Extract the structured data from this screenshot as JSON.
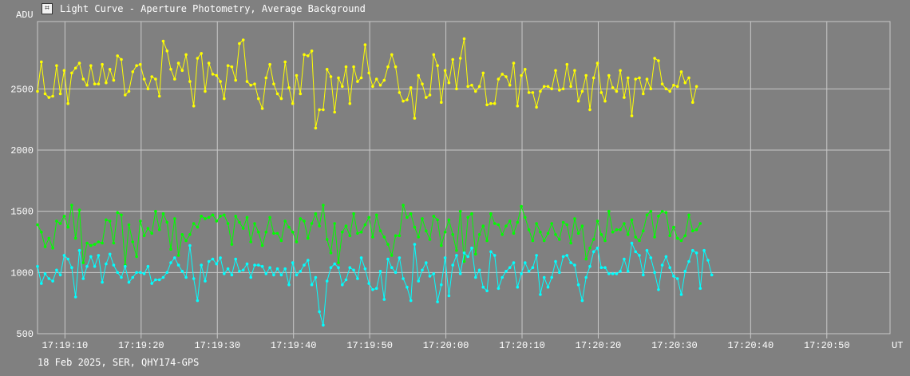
{
  "window": {
    "title": "Light Curve - Aperture Photometry, Average Background",
    "icon": "light-curve-app-icon"
  },
  "footer": {
    "info": "18 Feb 2025, SER, QHY174-GPS"
  },
  "colors": {
    "background": "#808080",
    "grid": "#c8c8c8",
    "text": "#ffffff",
    "yellow_series": "#ffff00",
    "green_series": "#00ff00",
    "cyan_series": "#00ffff"
  },
  "chart_data": {
    "type": "line",
    "title": "Light Curve - Aperture Photometry, Average Background",
    "ylabel": "ADU",
    "xlabel": "UT",
    "ylim": [
      500,
      3050
    ],
    "yticks": [
      500,
      1000,
      1500,
      2000,
      2500
    ],
    "xlim": [
      "17:19:06.4",
      "17:20:58.3"
    ],
    "xticks": [
      "17:19:10",
      "17:19:20",
      "17:19:30",
      "17:19:40",
      "17:19:50",
      "17:20:00",
      "17:20:10",
      "17:20:20",
      "17:20:30",
      "17:20:40",
      "17:20:50"
    ],
    "grid": true,
    "x_start": "17:19:06.4",
    "x_step_seconds": 0.5,
    "series": [
      {
        "color": "#ffff00",
        "values": [
          2480,
          2720,
          2460,
          2430,
          2440,
          2690,
          2460,
          2650,
          2380,
          2630,
          2670,
          2710,
          2580,
          2530,
          2690,
          2540,
          2540,
          2700,
          2550,
          2660,
          2570,
          2770,
          2740,
          2450,
          2480,
          2640,
          2690,
          2700,
          2580,
          2500,
          2600,
          2580,
          2440,
          2890,
          2810,
          2660,
          2580,
          2710,
          2650,
          2780,
          2560,
          2360,
          2750,
          2790,
          2480,
          2710,
          2620,
          2610,
          2560,
          2420,
          2690,
          2680,
          2570,
          2870,
          2900,
          2560,
          2530,
          2540,
          2420,
          2340,
          2590,
          2700,
          2540,
          2460,
          2420,
          2720,
          2510,
          2380,
          2610,
          2460,
          2780,
          2770,
          2810,
          2180,
          2330,
          2330,
          2660,
          2600,
          2310,
          2590,
          2520,
          2680,
          2380,
          2680,
          2560,
          2590,
          2860,
          2630,
          2520,
          2580,
          2530,
          2570,
          2680,
          2780,
          2680,
          2470,
          2400,
          2410,
          2510,
          2260,
          2610,
          2540,
          2430,
          2450,
          2780,
          2690,
          2390,
          2650,
          2550,
          2740,
          2500,
          2750,
          2910,
          2520,
          2530,
          2480,
          2520,
          2630,
          2370,
          2380,
          2380,
          2580,
          2620,
          2600,
          2530,
          2710,
          2360,
          2610,
          2660,
          2470,
          2470,
          2350,
          2480,
          2520,
          2520,
          2500,
          2650,
          2490,
          2500,
          2700,
          2520,
          2650,
          2400,
          2480,
          2610,
          2330,
          2590,
          2710,
          2470,
          2400,
          2610,
          2510,
          2480,
          2650,
          2430,
          2590,
          2280,
          2580,
          2590,
          2460,
          2580,
          2500,
          2750,
          2730,
          2540,
          2500,
          2480,
          2530,
          2520,
          2640,
          2550,
          2590,
          2390,
          2520
        ]
      },
      {
        "color": "#00ff00",
        "values": [
          1390,
          1330,
          1210,
          1280,
          1200,
          1420,
          1400,
          1460,
          1370,
          1550,
          1280,
          1510,
          1080,
          1240,
          1220,
          1230,
          1250,
          1240,
          1430,
          1420,
          1240,
          1490,
          1470,
          1060,
          1390,
          1250,
          1130,
          1420,
          1300,
          1360,
          1320,
          1500,
          1350,
          1480,
          1410,
          1190,
          1440,
          1140,
          1310,
          1260,
          1310,
          1400,
          1370,
          1460,
          1440,
          1450,
          1470,
          1420,
          1460,
          1470,
          1400,
          1230,
          1460,
          1410,
          1360,
          1450,
          1250,
          1400,
          1330,
          1220,
          1330,
          1450,
          1320,
          1320,
          1260,
          1420,
          1370,
          1330,
          1250,
          1440,
          1420,
          1280,
          1400,
          1480,
          1380,
          1550,
          1270,
          1160,
          1400,
          1080,
          1330,
          1380,
          1300,
          1480,
          1320,
          1330,
          1390,
          1450,
          1290,
          1470,
          1340,
          1290,
          1230,
          1140,
          1300,
          1300,
          1550,
          1450,
          1480,
          1370,
          1290,
          1440,
          1340,
          1270,
          1460,
          1430,
          1220,
          1330,
          1430,
          1310,
          1180,
          1500,
          1090,
          1450,
          1480,
          1150,
          1310,
          1380,
          1260,
          1480,
          1400,
          1390,
          1310,
          1380,
          1420,
          1320,
          1410,
          1540,
          1450,
          1350,
          1260,
          1400,
          1330,
          1260,
          1320,
          1400,
          1310,
          1270,
          1410,
          1390,
          1240,
          1440,
          1320,
          1380,
          1110,
          1200,
          1270,
          1420,
          1310,
          1260,
          1500,
          1330,
          1350,
          1350,
          1400,
          1310,
          1430,
          1290,
          1260,
          1340,
          1470,
          1500,
          1290,
          1460,
          1500,
          1490,
          1300,
          1370,
          1280,
          1260,
          1300,
          1470,
          1340,
          1350,
          1400
        ]
      },
      {
        "color": "#00ffff",
        "values": [
          1050,
          910,
          990,
          950,
          930,
          1020,
          980,
          1140,
          1110,
          1040,
          800,
          1180,
          950,
          1050,
          1130,
          1050,
          1140,
          920,
          1070,
          1150,
          1060,
          1000,
          960,
          1050,
          920,
          960,
          1000,
          1000,
          990,
          1050,
          910,
          940,
          940,
          960,
          1000,
          1080,
          1120,
          1060,
          1010,
          960,
          1220,
          950,
          770,
          1060,
          930,
          1090,
          1110,
          1070,
          1120,
          990,
          1030,
          980,
          1110,
          1010,
          1020,
          1070,
          960,
          1060,
          1060,
          1050,
          990,
          1040,
          980,
          1030,
          980,
          1030,
          900,
          1080,
          980,
          1010,
          1060,
          1100,
          900,
          960,
          680,
          570,
          930,
          1040,
          1070,
          1040,
          900,
          940,
          1040,
          1020,
          950,
          1120,
          1030,
          910,
          860,
          870,
          1010,
          780,
          1110,
          1040,
          1000,
          1120,
          950,
          880,
          770,
          1230,
          930,
          1020,
          1080,
          970,
          990,
          760,
          900,
          1120,
          810,
          1060,
          1140,
          990,
          1160,
          1130,
          1200,
          960,
          1020,
          880,
          850,
          1170,
          1140,
          870,
          960,
          1010,
          1040,
          1080,
          880,
          990,
          1080,
          1010,
          1040,
          1140,
          820,
          960,
          880,
          960,
          1090,
          1000,
          1130,
          1140,
          1080,
          1060,
          900,
          770,
          960,
          1050,
          1170,
          1200,
          1040,
          1040,
          990,
          990,
          990,
          1010,
          1110,
          1010,
          1240,
          1170,
          1140,
          980,
          1180,
          1120,
          1000,
          860,
          1060,
          1130,
          1040,
          970,
          950,
          820,
          1010,
          1090,
          1180,
          1160,
          870,
          1180,
          1100,
          980
        ]
      }
    ]
  }
}
